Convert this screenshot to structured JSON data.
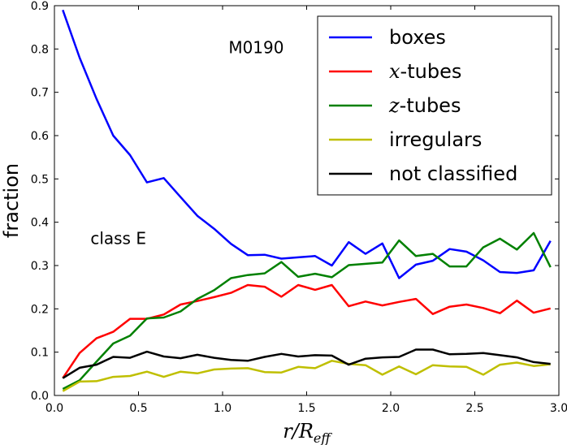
{
  "chart_data": {
    "type": "line",
    "title": "",
    "xlabel": {
      "main": "r/R",
      "sub": "eff"
    },
    "ylabel": "fraction",
    "xlim": [
      0.0,
      3.0
    ],
    "ylim": [
      0.0,
      0.9
    ],
    "xticks": [
      "0.0",
      "0.5",
      "1.0",
      "1.5",
      "2.0",
      "2.5",
      "3.0"
    ],
    "xtick_values": [
      0.0,
      0.5,
      1.0,
      1.5,
      2.0,
      2.5,
      3.0
    ],
    "yticks": [
      "0.0",
      "0.1",
      "0.2",
      "0.3",
      "0.4",
      "0.5",
      "0.6",
      "0.7",
      "0.8",
      "0.9"
    ],
    "ytick_values": [
      0.0,
      0.1,
      0.2,
      0.3,
      0.4,
      0.5,
      0.6,
      0.7,
      0.8,
      0.9
    ],
    "annotations": [
      {
        "text": "M0190",
        "x": 1.2,
        "y": 0.79
      },
      {
        "text": "class E",
        "x": 0.38,
        "y": 0.35
      }
    ],
    "legend_position": "top-right",
    "x": [
      0.05,
      0.15,
      0.25,
      0.35,
      0.45,
      0.55,
      0.65,
      0.75,
      0.85,
      0.95,
      1.05,
      1.15,
      1.25,
      1.35,
      1.45,
      1.55,
      1.65,
      1.75,
      1.85,
      1.95,
      2.05,
      2.15,
      2.25,
      2.35,
      2.45,
      2.55,
      2.65,
      2.75,
      2.85,
      2.95
    ],
    "series": [
      {
        "name": "boxes",
        "math_prefix": "",
        "label_rest": "boxes",
        "color": "#0000ff",
        "values": [
          0.89,
          0.78,
          0.685,
          0.6,
          0.555,
          0.492,
          0.502,
          0.458,
          0.415,
          0.385,
          0.35,
          0.324,
          0.325,
          0.316,
          0.319,
          0.322,
          0.3,
          0.354,
          0.327,
          0.351,
          0.271,
          0.302,
          0.311,
          0.338,
          0.332,
          0.312,
          0.285,
          0.283,
          0.289,
          0.357
        ]
      },
      {
        "name": "x-tubes",
        "math_prefix": "x",
        "label_rest": "-tubes",
        "color": "#ff0000",
        "values": [
          0.04,
          0.098,
          0.132,
          0.147,
          0.177,
          0.177,
          0.187,
          0.21,
          0.218,
          0.227,
          0.237,
          0.255,
          0.251,
          0.228,
          0.255,
          0.244,
          0.255,
          0.206,
          0.217,
          0.208,
          0.216,
          0.223,
          0.188,
          0.205,
          0.21,
          0.202,
          0.19,
          0.219,
          0.191,
          0.201
        ]
      },
      {
        "name": "z-tubes",
        "math_prefix": "z",
        "label_rest": "-tubes",
        "color": "#008000",
        "values": [
          0.015,
          0.035,
          0.078,
          0.12,
          0.138,
          0.178,
          0.18,
          0.194,
          0.223,
          0.243,
          0.271,
          0.278,
          0.282,
          0.308,
          0.274,
          0.281,
          0.273,
          0.301,
          0.304,
          0.307,
          0.358,
          0.322,
          0.327,
          0.298,
          0.298,
          0.342,
          0.362,
          0.337,
          0.375,
          0.296
        ]
      },
      {
        "name": "irregulars",
        "math_prefix": "",
        "label_rest": "irregulars",
        "color": "#bfbf00",
        "values": [
          0.01,
          0.032,
          0.033,
          0.043,
          0.045,
          0.055,
          0.043,
          0.055,
          0.051,
          0.06,
          0.062,
          0.063,
          0.054,
          0.053,
          0.066,
          0.063,
          0.08,
          0.073,
          0.07,
          0.048,
          0.067,
          0.049,
          0.07,
          0.067,
          0.066,
          0.048,
          0.071,
          0.076,
          0.068,
          0.072
        ]
      },
      {
        "name": "not classified",
        "math_prefix": "",
        "label_rest": "not classified",
        "color": "#000000",
        "values": [
          0.04,
          0.064,
          0.071,
          0.089,
          0.087,
          0.101,
          0.09,
          0.086,
          0.094,
          0.087,
          0.082,
          0.08,
          0.089,
          0.096,
          0.09,
          0.093,
          0.092,
          0.071,
          0.085,
          0.088,
          0.089,
          0.106,
          0.106,
          0.095,
          0.096,
          0.098,
          0.093,
          0.088,
          0.077,
          0.073
        ]
      }
    ]
  }
}
